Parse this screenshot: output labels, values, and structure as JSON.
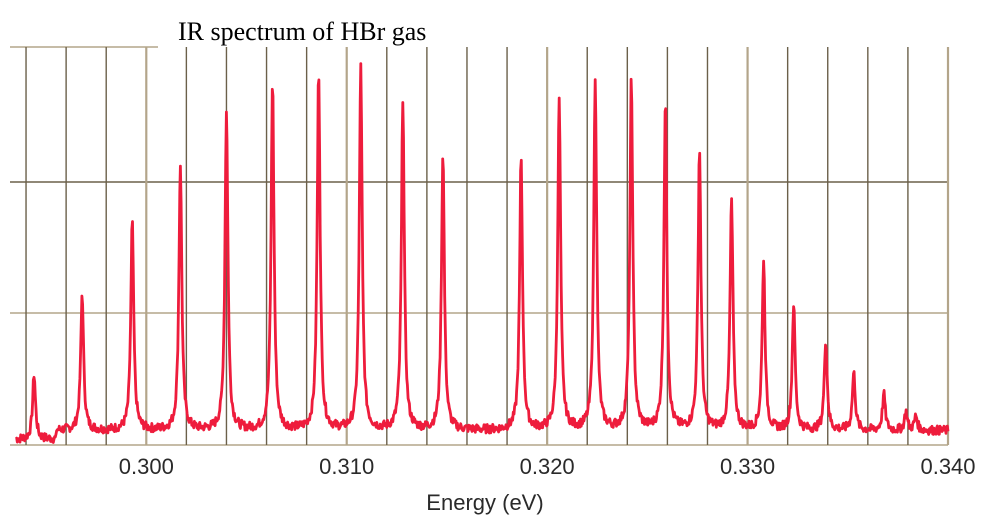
{
  "chart_data": {
    "type": "line",
    "title": "IR spectrum of HBr gas",
    "xlabel": "Energy (eV)",
    "ylabel": "",
    "xlim": [
      0.2932,
      0.34
    ],
    "ylim": [
      0,
      1
    ],
    "grid": true,
    "x_ticks": [
      "0.300",
      "0.310",
      "0.320",
      "0.330",
      "0.340"
    ],
    "x_tick_values": [
      0.3,
      0.31,
      0.32,
      0.33,
      0.34
    ],
    "line_color": "#ee1c3c",
    "grid_color_dark": "#6b604a",
    "grid_color_tan": "#b3a58a",
    "baseline": 0.04,
    "peaks": [
      {
        "x": 0.2944,
        "y": 0.22
      },
      {
        "x": 0.2968,
        "y": 0.42
      },
      {
        "x": 0.2993,
        "y": 0.62
      },
      {
        "x": 0.3017,
        "y": 0.78
      },
      {
        "x": 0.304,
        "y": 0.93
      },
      {
        "x": 0.3063,
        "y": 1.01
      },
      {
        "x": 0.3086,
        "y": 1.04
      },
      {
        "x": 0.3107,
        "y": 1.05
      },
      {
        "x": 0.3128,
        "y": 0.96
      },
      {
        "x": 0.3148,
        "y": 0.81
      },
      {
        "x": 0.3187,
        "y": 0.8
      },
      {
        "x": 0.3206,
        "y": 0.96
      },
      {
        "x": 0.3224,
        "y": 1.02
      },
      {
        "x": 0.3242,
        "y": 1.01
      },
      {
        "x": 0.3259,
        "y": 0.95
      },
      {
        "x": 0.3276,
        "y": 0.82
      },
      {
        "x": 0.3292,
        "y": 0.68
      },
      {
        "x": 0.3308,
        "y": 0.51
      },
      {
        "x": 0.3323,
        "y": 0.39
      },
      {
        "x": 0.3339,
        "y": 0.29
      },
      {
        "x": 0.3353,
        "y": 0.2
      },
      {
        "x": 0.3368,
        "y": 0.14
      },
      {
        "x": 0.3379,
        "y": 0.09
      },
      {
        "x": 0.3384,
        "y": 0.08
      }
    ]
  }
}
